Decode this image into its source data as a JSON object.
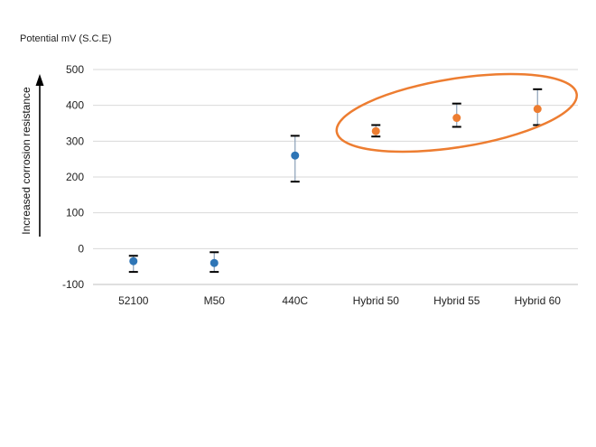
{
  "chart_data": {
    "type": "scatter",
    "title": "",
    "ylabel": "Potential mV (S.C.E)",
    "side_annotation": "Increased corrosion resistance",
    "ylim": [
      -100,
      500
    ],
    "yticks": [
      -100,
      0,
      100,
      200,
      300,
      400,
      500
    ],
    "categories": [
      "52100",
      "M50",
      "440C",
      "Hybrid 50",
      "Hybrid 55",
      "Hybrid 60"
    ],
    "points": [
      {
        "category": "52100",
        "value": -35,
        "err_low": -65,
        "err_high": -20,
        "color": "#2e75b6"
      },
      {
        "category": "M50",
        "value": -40,
        "err_low": -65,
        "err_high": -10,
        "color": "#2e75b6"
      },
      {
        "category": "440C",
        "value": 260,
        "err_low": 187,
        "err_high": 315,
        "color": "#2e75b6"
      },
      {
        "category": "Hybrid 50",
        "value": 328,
        "err_low": 313,
        "err_high": 345,
        "color": "#ed7d31"
      },
      {
        "category": "Hybrid 55",
        "value": 365,
        "err_low": 340,
        "err_high": 405,
        "color": "#ed7d31"
      },
      {
        "category": "Hybrid 60",
        "value": 390,
        "err_low": 345,
        "err_high": 445,
        "color": "#ed7d31"
      }
    ],
    "highlight": {
      "shape": "ellipse",
      "color": "#ed7d31",
      "categories": [
        "Hybrid 50",
        "Hybrid 55",
        "Hybrid 60"
      ]
    },
    "grid": true,
    "legend": "none",
    "colors": {
      "base": "#2e75b6",
      "hybrid": "#ed7d31",
      "grid": "#d9d9d9",
      "errorbar": "#000000",
      "errorline": "#8aa0b8"
    }
  }
}
